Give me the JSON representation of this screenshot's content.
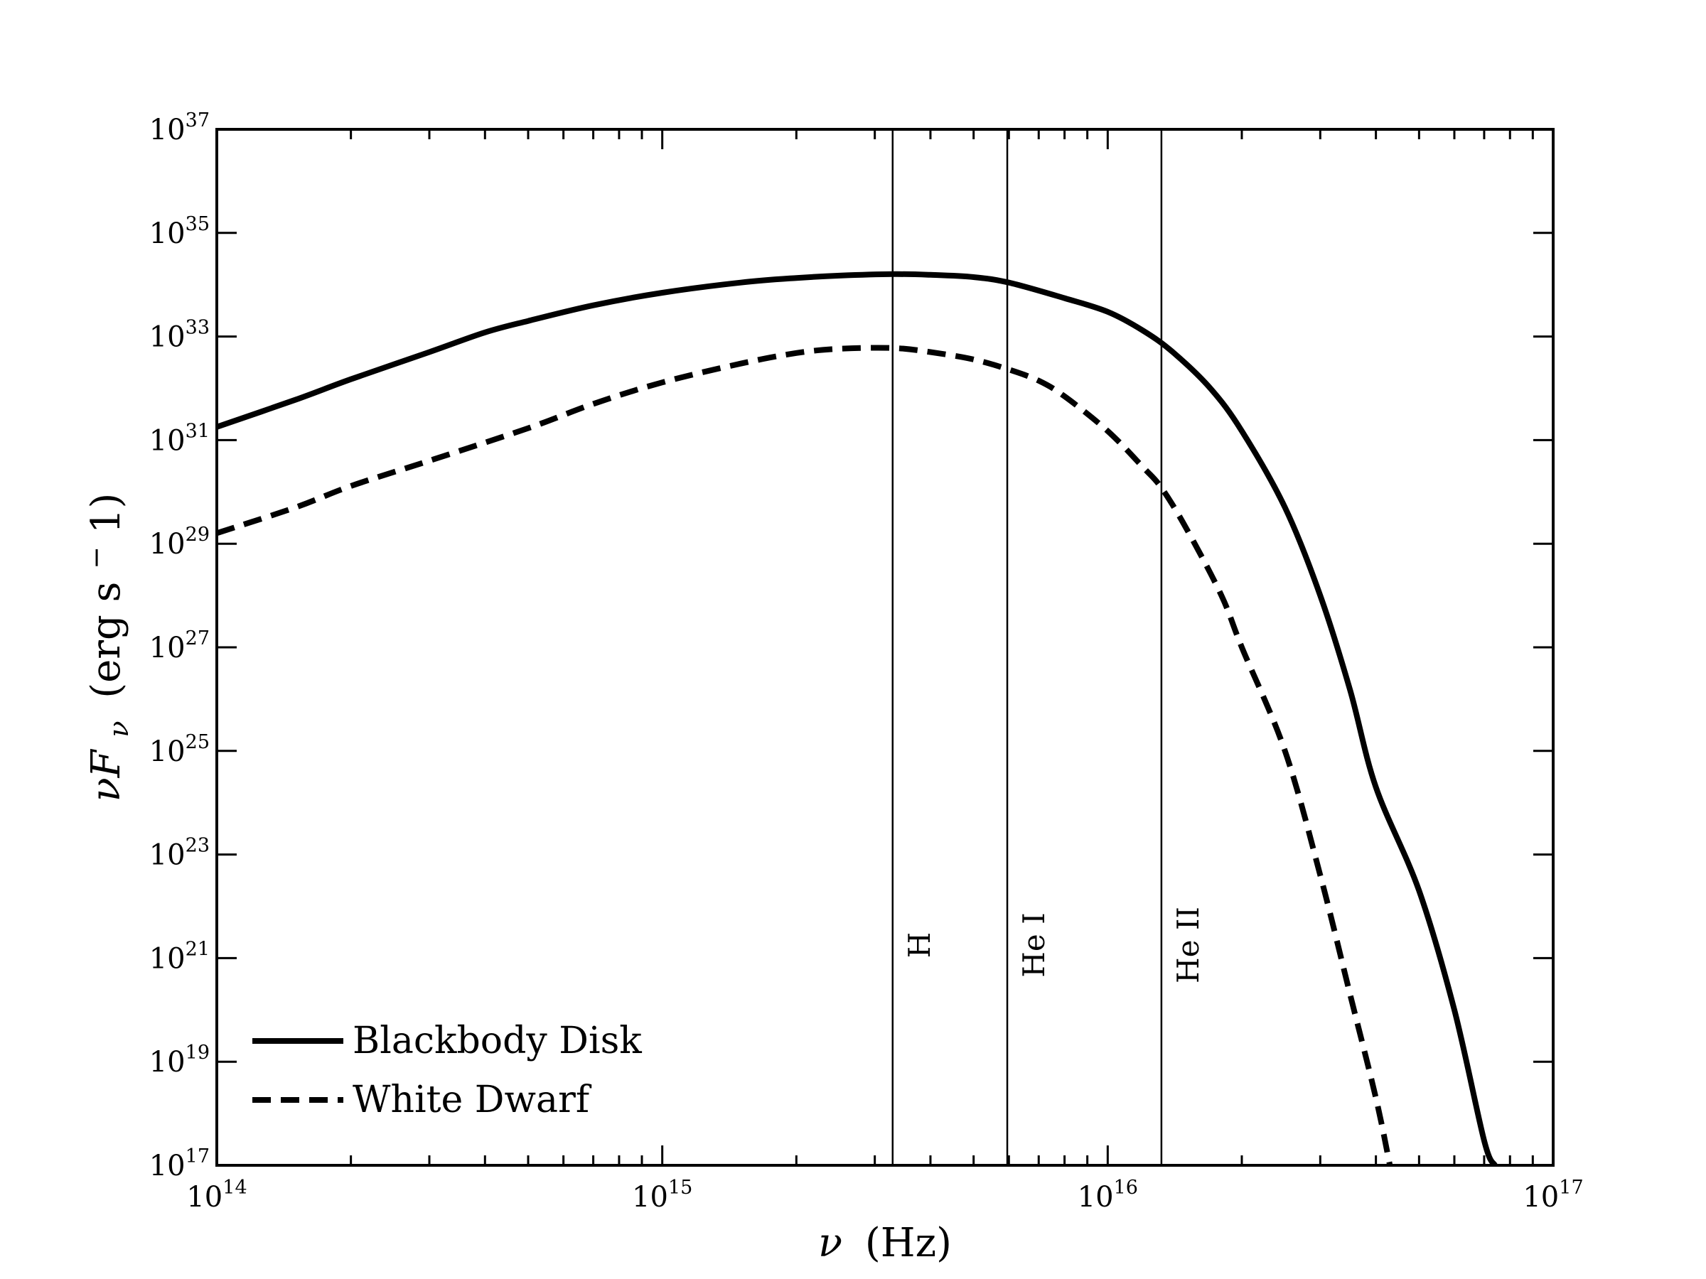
{
  "chart_data": {
    "type": "line",
    "title": "",
    "x_scale": "log",
    "y_scale": "log",
    "xlim": [
      100000000000000.0,
      1e+17
    ],
    "ylim": [
      1e+17,
      1e+37
    ],
    "xlabel": {
      "symbol": "ν",
      "unit": "(Hz)"
    },
    "ylabel": {
      "symbol": "νF",
      "sub": "ν",
      "unit_pre": "(erg s",
      "unit_exp": "−",
      "unit_post": "1)"
    },
    "x_ticks": [
      {
        "value": 100000000000000.0,
        "base": "10",
        "exp": "14"
      },
      {
        "value": 1000000000000000.0,
        "base": "10",
        "exp": "15"
      },
      {
        "value": 1e+16,
        "base": "10",
        "exp": "16"
      },
      {
        "value": 1e+17,
        "base": "10",
        "exp": "17"
      }
    ],
    "y_ticks": [
      {
        "value": 1e+17,
        "base": "10",
        "exp": "17"
      },
      {
        "value": 1e+19,
        "base": "10",
        "exp": "19"
      },
      {
        "value": 1e+21,
        "base": "10",
        "exp": "21"
      },
      {
        "value": 1e+23,
        "base": "10",
        "exp": "23"
      },
      {
        "value": 1e+25,
        "base": "10",
        "exp": "25"
      },
      {
        "value": 1e+27,
        "base": "10",
        "exp": "27"
      },
      {
        "value": 1e+29,
        "base": "10",
        "exp": "29"
      },
      {
        "value": 1e+31,
        "base": "10",
        "exp": "31"
      },
      {
        "value": 1e+33,
        "base": "10",
        "exp": "33"
      },
      {
        "value": 1e+35,
        "base": "10",
        "exp": "35"
      },
      {
        "value": 1e+37,
        "base": "10",
        "exp": "37"
      }
    ],
    "vlines": [
      {
        "label": "H",
        "x": 3290000000000000.0
      },
      {
        "label": "He I",
        "x": 5950000000000000.0
      },
      {
        "label": "He II",
        "x": 1.32e+16
      }
    ],
    "series": [
      {
        "name": "Blackbody Disk",
        "style": "solid",
        "color": "#000000",
        "points": [
          [
            100000000000000.0,
            1.8e+31
          ],
          [
            150000000000000.0,
            6e+31
          ],
          [
            200000000000000.0,
            1.5e+32
          ],
          [
            300000000000000.0,
            5e+32
          ],
          [
            400000000000000.0,
            1.2e+33
          ],
          [
            500000000000000.0,
            2e+33
          ],
          [
            700000000000000.0,
            4e+33
          ],
          [
            1000000000000000.0,
            7e+33
          ],
          [
            1500000000000000.0,
            1.1e+34
          ],
          [
            2000000000000000.0,
            1.35e+34
          ],
          [
            2500000000000000.0,
            1.5e+34
          ],
          [
            3300000000000000.0,
            1.6e+34
          ],
          [
            4000000000000000.0,
            1.55e+34
          ],
          [
            5000000000000000.0,
            1.4e+34
          ],
          [
            6000000000000000.0,
            1.1e+34
          ],
          [
            8000000000000000.0,
            5.5e+33
          ],
          [
            1e+16,
            3e+33
          ],
          [
            1.2e+16,
            1.3e+33
          ],
          [
            1.4e+16,
            5e+32
          ],
          [
            1.7e+16,
            1e+32
          ],
          [
            2e+16,
            1.5e+31
          ],
          [
            2.5e+16,
            5e+29
          ],
          [
            3e+16,
            1e+28
          ],
          [
            3.5e+16,
            1.5e+26
          ],
          [
            4e+16,
            2e+24
          ],
          [
            5e+16,
            2e+22
          ],
          [
            6e+16,
            1e+20
          ],
          [
            7e+16,
            3e+17
          ],
          [
            7.4e+16,
            1e+17
          ]
        ]
      },
      {
        "name": "White Dwarf",
        "style": "dashed",
        "color": "#000000",
        "points": [
          [
            100000000000000.0,
            1.6e+29
          ],
          [
            150000000000000.0,
            5e+29
          ],
          [
            200000000000000.0,
            1.3e+30
          ],
          [
            300000000000000.0,
            4e+30
          ],
          [
            500000000000000.0,
            1.7e+31
          ],
          [
            700000000000000.0,
            5e+31
          ],
          [
            1000000000000000.0,
            1.3e+32
          ],
          [
            1500000000000000.0,
            3e+32
          ],
          [
            2000000000000000.0,
            4.8e+32
          ],
          [
            2500000000000000.0,
            5.8e+32
          ],
          [
            3300000000000000.0,
            6e+32
          ],
          [
            4000000000000000.0,
            5e+32
          ],
          [
            5000000000000000.0,
            3.6e+32
          ],
          [
            6000000000000000.0,
            2.3e+32
          ],
          [
            7000000000000000.0,
            1.4e+32
          ],
          [
            8000000000000000.0,
            7e+31
          ],
          [
            1e+16,
            1.5e+31
          ],
          [
            1.2e+16,
            3e+30
          ],
          [
            1.32e+16,
            1.2e+30
          ],
          [
            1.5e+16,
            2e+29
          ],
          [
            1.8e+16,
            1e+28
          ],
          [
            2e+16,
            1e+27
          ],
          [
            2.5e+16,
            1e+25
          ],
          [
            3e+16,
            4e+22
          ],
          [
            3.5e+16,
            2e+20
          ],
          [
            4e+16,
            2e+18
          ],
          [
            4.3e+16,
            1e+17
          ]
        ]
      }
    ],
    "legend": {
      "position": "lower-left"
    },
    "grid": false
  }
}
